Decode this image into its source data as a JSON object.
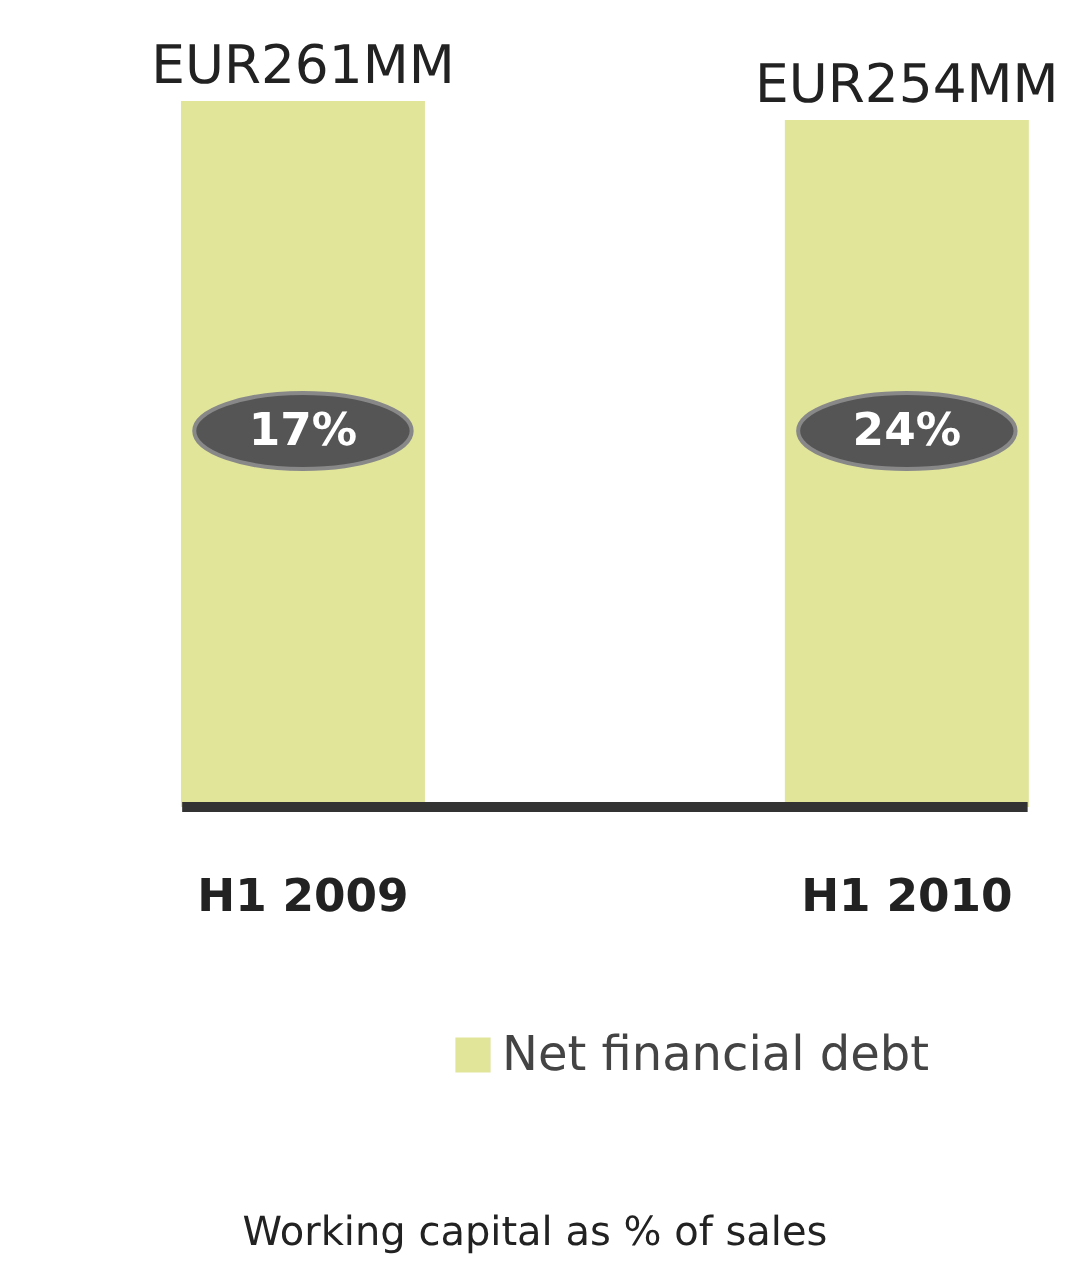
{
  "chart_data": {
    "type": "bar",
    "categories": [
      "H1 2009",
      "H1 2010"
    ],
    "series": [
      {
        "name": "Net financial debt",
        "color": "#e0e59a",
        "values": [
          261,
          254
        ],
        "value_labels": [
          "EUR261MM",
          "EUR254MM"
        ]
      }
    ],
    "relative": false,
    "annotations": [
      "17%",
      "24%",
      "Working capital as % of sales"
    ],
    "legend": "bottom"
  }
}
